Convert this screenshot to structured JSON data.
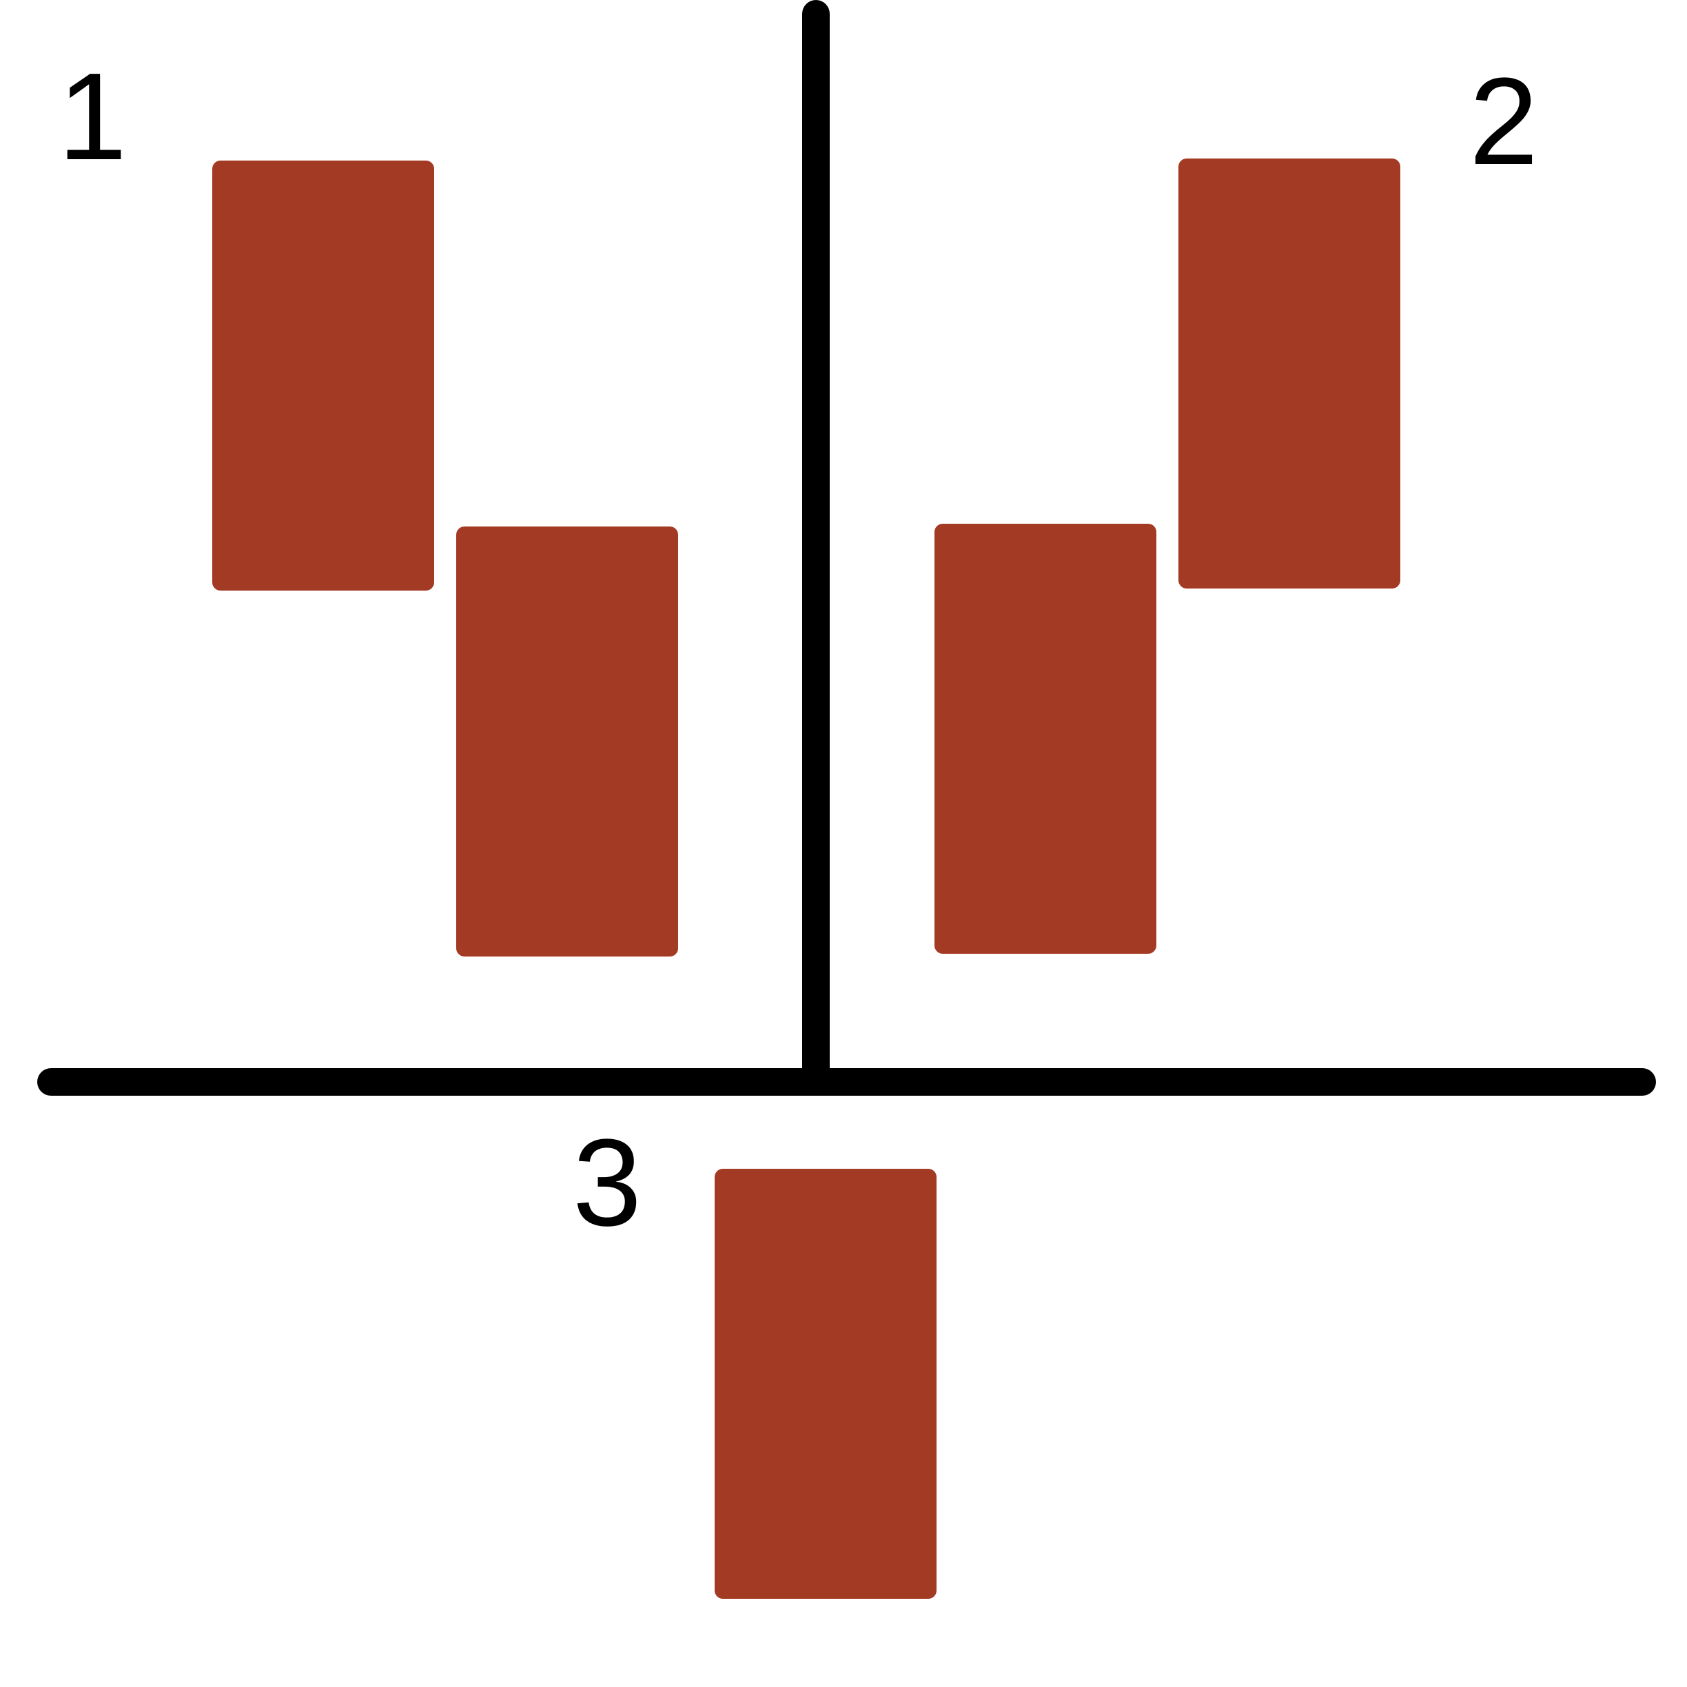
{
  "labels": {
    "one": "1",
    "two": "2",
    "three": "3"
  },
  "colors": {
    "block": "#a33a23",
    "line": "#000000",
    "background": "#ffffff"
  }
}
